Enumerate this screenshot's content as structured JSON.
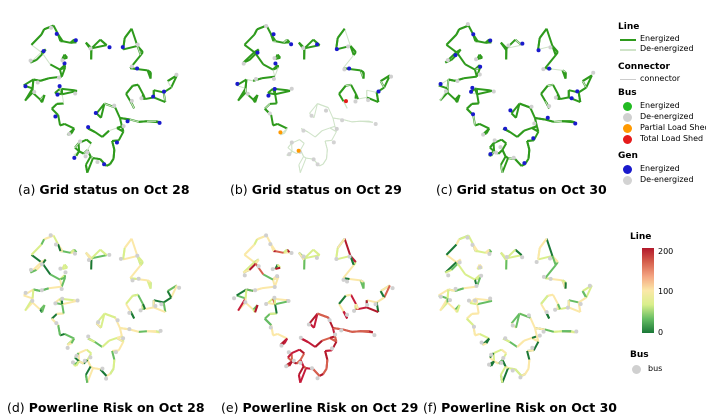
{
  "panels": [
    {
      "label": "(a)",
      "title": "Grid status on Oct 28",
      "mode": "status",
      "day": 28
    },
    {
      "label": "(b)",
      "title": "Grid status on Oct 29",
      "mode": "status",
      "day": 29
    },
    {
      "label": "(c)",
      "title": "Grid status on Oct 30",
      "mode": "status",
      "day": 30
    },
    {
      "label": "(d)",
      "title": "Powerline Risk on Oct 28",
      "mode": "risk",
      "day": 28
    },
    {
      "label": "(e)",
      "title": "Powerline Risk on Oct 29",
      "mode": "risk",
      "day": 29
    },
    {
      "label": "(f)",
      "title": "Powerline Risk on Oct 30",
      "mode": "risk",
      "day": 30
    }
  ],
  "legend_top": {
    "line_title": "Line",
    "line_energized": "Energized",
    "line_deenergized": "De-energized",
    "connector_title": "Connector",
    "connector_item": "connector",
    "bus_title": "Bus",
    "bus_energized": "Energized",
    "bus_deenergized": "De-energized",
    "bus_partial": "Partial Load Shed",
    "bus_total": "Total Load Shed",
    "gen_title": "Gen",
    "gen_energized": "Energized",
    "gen_deenergized": "De-energized"
  },
  "legend_bottom": {
    "line_title": "Line",
    "scale_max": "200",
    "scale_mid": "100",
    "scale_min": "0",
    "bus_title": "Bus",
    "bus_item": "bus"
  },
  "colors": {
    "energized_line": "#2e9a1c",
    "deenergized_line": "#cfe3c8",
    "connector": "#cccccc",
    "bus_energized": "#22bb22",
    "bus_deenergized": "#d0d0d0",
    "partial_load_shed": "#ff9900",
    "total_load_shed": "#e51b1b",
    "gen_energized": "#1a1acc",
    "gen_deenergized": "#d3d3d3",
    "risk_high": "#b2182b",
    "risk_mid": "#fbe8a8",
    "risk_low": "#1a7837"
  }
}
